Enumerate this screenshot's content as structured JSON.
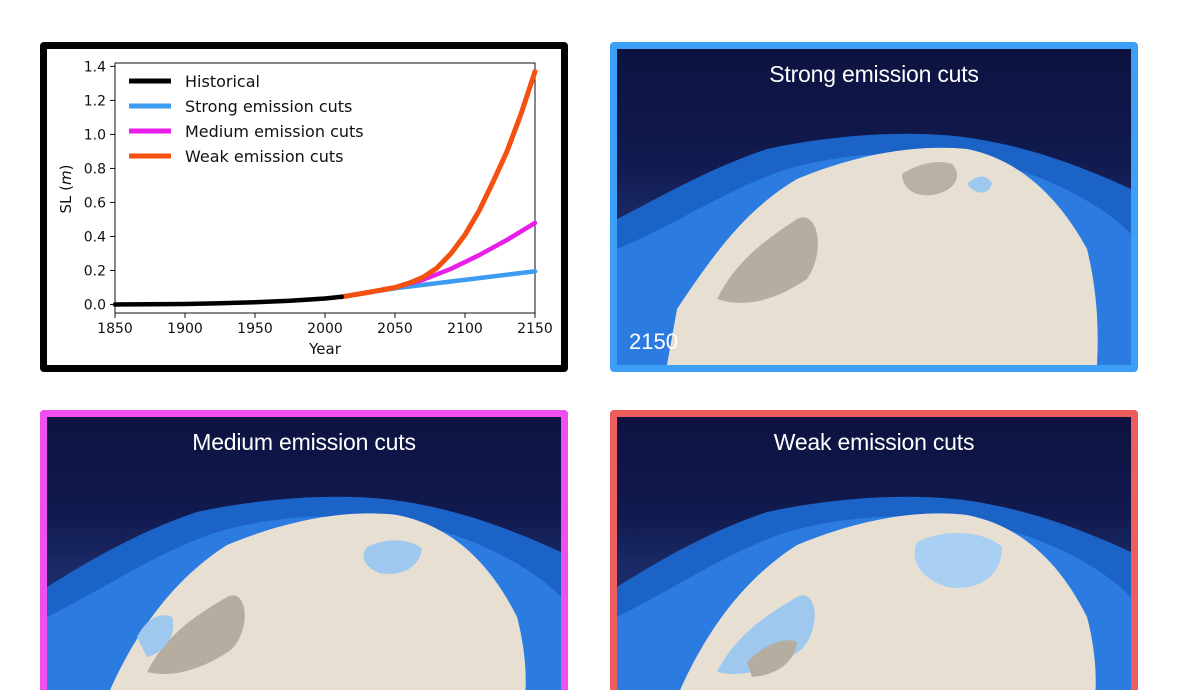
{
  "chart_data": {
    "type": "line",
    "xlabel": "Year",
    "ylabel": "SL (m)",
    "xlim": [
      1850,
      2150
    ],
    "ylim": [
      -0.05,
      1.42
    ],
    "xticks": [
      1850,
      1900,
      1950,
      2000,
      2050,
      2100,
      2150
    ],
    "yticks": [
      0.0,
      0.2,
      0.4,
      0.6,
      0.8,
      1.0,
      1.2,
      1.4
    ],
    "grid": false,
    "legend_position": "upper-left",
    "series": [
      {
        "name": "Historical",
        "color": "#000000",
        "x": [
          1850,
          1875,
          1900,
          1925,
          1950,
          1975,
          2000,
          2012
        ],
        "y": [
          0.0,
          0.001,
          0.003,
          0.007,
          0.013,
          0.022,
          0.035,
          0.045
        ]
      },
      {
        "name": "Strong emission cuts",
        "color": "#3b9cf1",
        "x": [
          2012,
          2030,
          2050,
          2070,
          2090,
          2110,
          2130,
          2150
        ],
        "y": [
          0.045,
          0.07,
          0.095,
          0.115,
          0.135,
          0.155,
          0.175,
          0.195
        ]
      },
      {
        "name": "Medium emission cuts",
        "color": "#e81de8",
        "x": [
          2012,
          2030,
          2050,
          2070,
          2090,
          2110,
          2130,
          2150
        ],
        "y": [
          0.045,
          0.07,
          0.1,
          0.145,
          0.21,
          0.29,
          0.38,
          0.48
        ]
      },
      {
        "name": "Weak emission cuts",
        "color": "#f4500f",
        "x": [
          2012,
          2030,
          2050,
          2060,
          2070,
          2080,
          2090,
          2100,
          2110,
          2120,
          2130,
          2140,
          2150
        ],
        "y": [
          0.045,
          0.07,
          0.1,
          0.125,
          0.16,
          0.215,
          0.3,
          0.41,
          0.55,
          0.72,
          0.9,
          1.12,
          1.37
        ]
      }
    ]
  },
  "panels": {
    "strong": {
      "title": "Strong emission cuts",
      "year": "2150"
    },
    "medium": {
      "title": "Medium emission cuts"
    },
    "weak": {
      "title": "Weak emission cuts"
    }
  },
  "colors": {
    "chart_border": "#000000",
    "strong_border": "#3d9ff5",
    "medium_border": "#ef4ff0",
    "weak_border": "#ee5e5c"
  }
}
